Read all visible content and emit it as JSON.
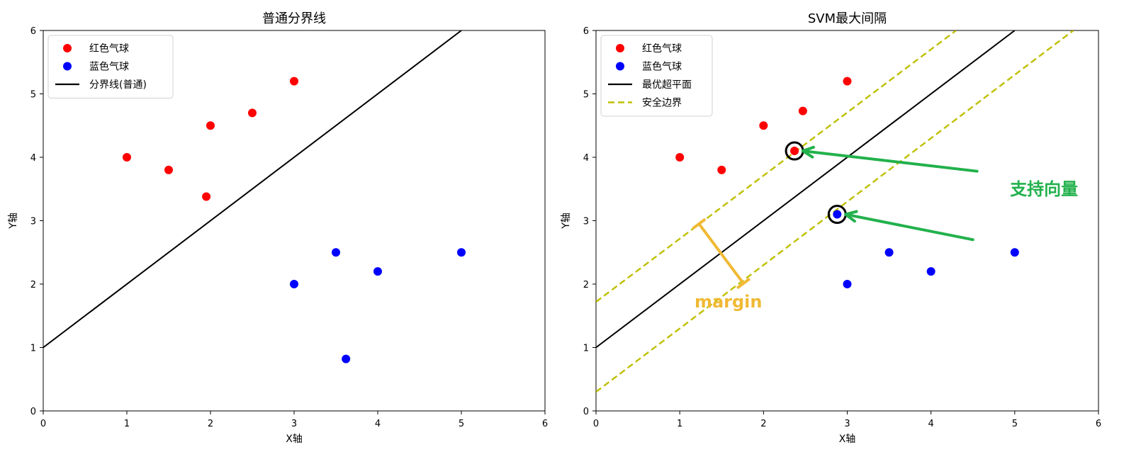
{
  "chart_data": [
    {
      "type": "scatter",
      "title": "普通分界线",
      "xlabel": "X轴",
      "ylabel": "Y轴",
      "xlim": [
        0,
        6
      ],
      "ylim": [
        0,
        6
      ],
      "xticks": [
        0,
        1,
        2,
        3,
        4,
        5,
        6
      ],
      "yticks": [
        0,
        1,
        2,
        3,
        4,
        5,
        6
      ],
      "grid": false,
      "legend_position": "top-left",
      "series": [
        {
          "name": "红色气球",
          "kind": "points",
          "color": "#ff0000",
          "x": [
            1,
            1.5,
            2,
            1.95,
            2.5,
            3
          ],
          "y": [
            4,
            3.8,
            4.5,
            3.38,
            4.7,
            5.2
          ]
        },
        {
          "name": "蓝色气球",
          "kind": "points",
          "color": "#0000ff",
          "x": [
            3,
            3.5,
            4,
            5,
            3.62
          ],
          "y": [
            2,
            2.5,
            2.2,
            2.5,
            0.82
          ]
        },
        {
          "name": "分界线(普通)",
          "kind": "line",
          "color": "#000000",
          "dash": false,
          "x": [
            0,
            5
          ],
          "y": [
            1,
            6
          ]
        }
      ],
      "annotations": []
    },
    {
      "type": "scatter",
      "title": "SVM最大间隔",
      "xlabel": "X轴",
      "ylabel": "Y轴",
      "xlim": [
        0,
        6
      ],
      "ylim": [
        0,
        6
      ],
      "xticks": [
        0,
        1,
        2,
        3,
        4,
        5,
        6
      ],
      "yticks": [
        0,
        1,
        2,
        3,
        4,
        5,
        6
      ],
      "grid": false,
      "legend_position": "top-left",
      "series": [
        {
          "name": "红色气球",
          "kind": "points",
          "color": "#ff0000",
          "x": [
            1,
            1.5,
            2,
            2.37,
            2.47,
            3
          ],
          "y": [
            4,
            3.8,
            4.5,
            4.1,
            4.73,
            5.2
          ]
        },
        {
          "name": "蓝色气球",
          "kind": "points",
          "color": "#0000ff",
          "x": [
            2.88,
            3,
            3.5,
            4,
            5
          ],
          "y": [
            3.1,
            2,
            2.5,
            2.2,
            2.5
          ]
        },
        {
          "name": "最优超平面",
          "kind": "line",
          "color": "#000000",
          "dash": false,
          "x": [
            0,
            5
          ],
          "y": [
            1,
            6
          ]
        },
        {
          "name": "安全边界",
          "kind": "line",
          "color": "#bfbf00",
          "dash": true,
          "x": [
            0,
            4.3
          ],
          "y": [
            1.72,
            6
          ]
        },
        {
          "name": "",
          "kind": "line",
          "color": "#bfbf00",
          "dash": true,
          "x": [
            0,
            5.7
          ],
          "y": [
            0.3,
            6
          ]
        }
      ],
      "support_vectors": [
        {
          "x": 2.37,
          "y": 4.1
        },
        {
          "x": 2.88,
          "y": 3.1
        }
      ],
      "annotations": [
        {
          "text": "支持向量",
          "color": "#22b14c",
          "text_x": 5.35,
          "text_y": 3.5,
          "arrows": [
            {
              "from": [
                4.55,
                3.78
              ],
              "to": [
                2.47,
                4.1
              ]
            },
            {
              "from": [
                4.5,
                2.7
              ],
              "to": [
                2.98,
                3.1
              ]
            }
          ]
        },
        {
          "text": "margin",
          "color": "#f0b935",
          "text_x": 1.58,
          "text_y": 1.72,
          "bracket": {
            "from": [
              1.23,
              2.95
            ],
            "to": [
              1.76,
              2.01
            ]
          }
        }
      ]
    }
  ]
}
